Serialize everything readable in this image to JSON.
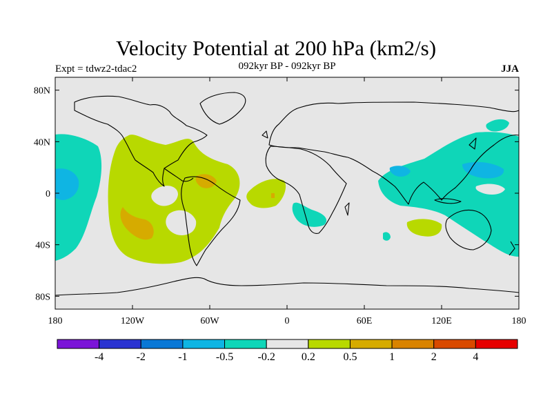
{
  "title": "Velocity Potential at 200 hPa (km2/s)",
  "subtitle": "092kyr BP - 092kyr BP",
  "left_label": "Expt = tdwz2-tdac2",
  "right_label": "JJA",
  "map": {
    "background_color": "#e6e6e6",
    "lon_ticks": [
      {
        "value": -180,
        "label": "180"
      },
      {
        "value": -120,
        "label": "120W"
      },
      {
        "value": -60,
        "label": "60W"
      },
      {
        "value": 0,
        "label": "0"
      },
      {
        "value": 60,
        "label": "60E"
      },
      {
        "value": 120,
        "label": "120E"
      },
      {
        "value": 180,
        "label": "180"
      }
    ],
    "lat_ticks": [
      {
        "value": 80,
        "label": "80N"
      },
      {
        "value": 40,
        "label": "40N"
      },
      {
        "value": 0,
        "label": "0"
      },
      {
        "value": -40,
        "label": "40S"
      },
      {
        "value": -80,
        "label": "80S"
      }
    ]
  },
  "colorbar": {
    "colors": [
      "#7b14d8",
      "#2a33d1",
      "#0a78d6",
      "#0fb5e3",
      "#0fd6b8",
      "#e6e6e6",
      "#b8d900",
      "#d6ab00",
      "#d98300",
      "#d94a00",
      "#e60000"
    ],
    "labels": [
      "-4",
      "-2",
      "-1",
      "-0.5",
      "-0.2",
      "0.2",
      "0.5",
      "1",
      "2",
      "4"
    ]
  }
}
